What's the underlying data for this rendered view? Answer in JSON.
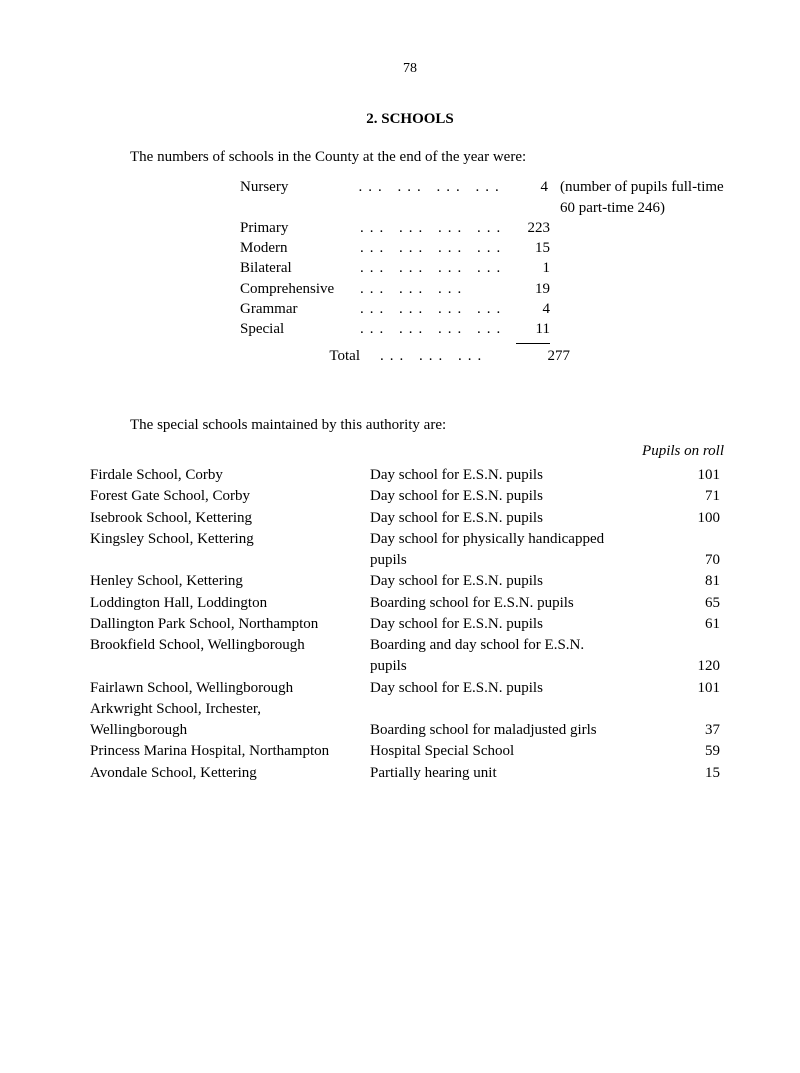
{
  "page_number": "78",
  "section_title": "2. SCHOOLS",
  "intro": "The numbers of schools in the County at the end of the year were:",
  "note": "(number of pupils full-time 60 part-time 246)",
  "school_types": {
    "rows": [
      {
        "label": "Nursery",
        "dots": "...        ...        ...        ...",
        "value": "4"
      },
      {
        "label": "Primary",
        "dots": "...        ...        ...        ...",
        "value": "223"
      },
      {
        "label": "Modern",
        "dots": "...        ...        ...        ...",
        "value": "15"
      },
      {
        "label": "Bilateral",
        "dots": "...        ...        ...        ...",
        "value": "1"
      },
      {
        "label": "Comprehensive",
        "dots": "      ...        ...        ...",
        "value": "19"
      },
      {
        "label": "Grammar",
        "dots": "...        ...        ...        ...",
        "value": "4"
      },
      {
        "label": "Special",
        "dots": "...        ...        ...        ...",
        "value": "11"
      }
    ],
    "total_label": "Total",
    "total_dots": "...        ...        ...",
    "total_value": "277"
  },
  "subhead": "The special schools maintained by this authority are:",
  "roll_header": "Pupils on roll",
  "special_schools": [
    {
      "school": "Firdale School, Corby",
      "type": "Day school for E.S.N. pupils",
      "num": "101"
    },
    {
      "school": "Forest Gate School, Corby",
      "type": "Day school for E.S.N. pupils",
      "num": "71"
    },
    {
      "school": "Isebrook School, Kettering",
      "type": "Day school for E.S.N. pupils",
      "num": "100"
    },
    {
      "school": "Kingsley School, Kettering",
      "type": "Day school for physically handicapped",
      "num": ""
    },
    {
      "school": "",
      "type_indent": true,
      "type": "pupils",
      "num": "70"
    },
    {
      "school": "Henley School, Kettering",
      "type": "Day school for E.S.N. pupils",
      "num": "81"
    },
    {
      "school": "Loddington Hall, Loddington",
      "type": "Boarding school for E.S.N. pupils",
      "num": "65"
    },
    {
      "school": "Dallington Park School, Northampton",
      "type": "Day school for E.S.N. pupils",
      "num": "61"
    },
    {
      "school": "Brookfield School, Wellingborough",
      "type": "Boarding and day school for E.S.N.",
      "num": ""
    },
    {
      "school": "",
      "type_indent": true,
      "type": "pupils",
      "num": "120"
    },
    {
      "school": "Fairlawn School, Wellingborough",
      "type": "Day school for E.S.N. pupils",
      "num": "101"
    },
    {
      "school": "Arkwright School, Irchester,",
      "type": "",
      "num": ""
    },
    {
      "school_indent": true,
      "school": "Wellingborough",
      "type": "Boarding school for maladjusted girls",
      "num": "37"
    },
    {
      "school": "Princess Marina Hospital, Northampton",
      "type": "Hospital Special School",
      "num": "59"
    },
    {
      "school": "Avondale School, Kettering",
      "type": "Partially hearing unit",
      "num": "15"
    }
  ]
}
